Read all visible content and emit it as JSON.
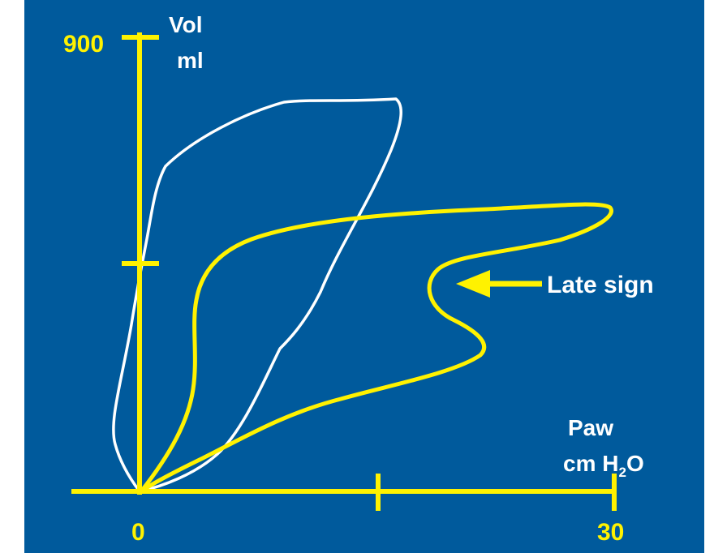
{
  "diagram": {
    "colors": {
      "background": "#005A9C",
      "axis": "#FFF200",
      "curve_normal": "#FFFFFF",
      "curve_abnormal": "#FFF200",
      "text_white": "#FFFFFF",
      "text_yellow": "#FFF200"
    },
    "y_axis": {
      "label_line1": "Vol",
      "label_line2": "ml",
      "max_label": "900"
    },
    "x_axis": {
      "label_line1": "Paw",
      "label_line2_prefix": "cm H",
      "label_line2_sub": "2",
      "label_line2_suffix": "O",
      "min_label": "0",
      "max_label": "30"
    },
    "annotation": {
      "text": "Late sign"
    }
  }
}
